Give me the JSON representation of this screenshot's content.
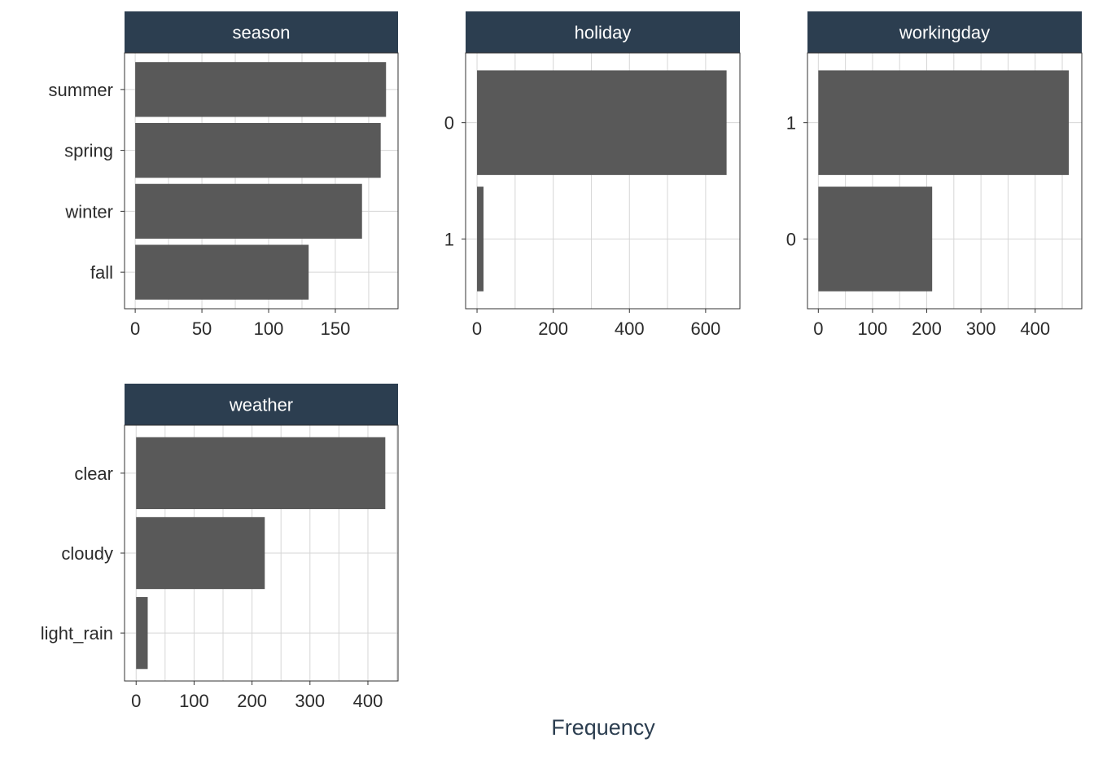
{
  "chart_data": [
    {
      "type": "bar",
      "orientation": "horizontal",
      "title": "season",
      "categories": [
        "summer",
        "spring",
        "winter",
        "fall"
      ],
      "values": [
        188,
        184,
        170,
        130
      ],
      "xlim": [
        -8,
        197
      ],
      "xticks": [
        "0",
        "50",
        "100",
        "150"
      ]
    },
    {
      "type": "bar",
      "orientation": "horizontal",
      "title": "holiday",
      "categories": [
        "0",
        "1"
      ],
      "values": [
        655,
        17
      ],
      "xlim": [
        -30,
        690
      ],
      "xticks": [
        "0",
        "200",
        "400",
        "600"
      ]
    },
    {
      "type": "bar",
      "orientation": "horizontal",
      "title": "workingday",
      "categories": [
        "1",
        "0"
      ],
      "values": [
        462,
        210
      ],
      "xlim": [
        -20,
        486
      ],
      "xticks": [
        "0",
        "100",
        "200",
        "300",
        "400"
      ]
    },
    {
      "type": "bar",
      "orientation": "horizontal",
      "title": "weather",
      "categories": [
        "clear",
        "cloudy",
        "light_rain"
      ],
      "values": [
        430,
        222,
        20
      ],
      "xlim": [
        -20,
        452
      ],
      "xticks": [
        "0",
        "100",
        "200",
        "300",
        "400"
      ]
    }
  ],
  "xlabel": "Frequency",
  "colors": {
    "bar": "#595959",
    "strip": "#2c3e50",
    "grid": "#d6d6d6",
    "border": "#333333"
  }
}
